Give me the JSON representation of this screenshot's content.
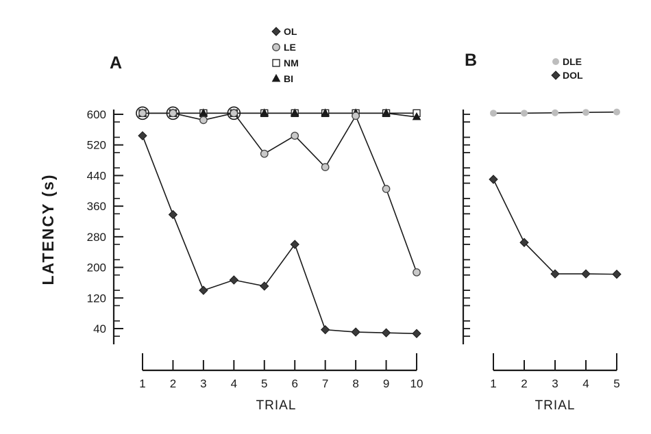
{
  "chart_data": [
    {
      "panel": "A",
      "type": "line",
      "xlabel": "TRIAL",
      "ylabel": "LATENCY (s)",
      "x": [
        1,
        2,
        3,
        4,
        5,
        6,
        7,
        8,
        9,
        10
      ],
      "x_ticks": [
        "1",
        "2",
        "3",
        "4",
        "5",
        "6",
        "7",
        "8",
        "9",
        "10"
      ],
      "y_ticks": [
        "600",
        "520",
        "440",
        "360",
        "280",
        "200",
        "120",
        "40"
      ],
      "ylim": [
        20,
        610
      ],
      "legend_placement": "top-center",
      "series": [
        {
          "name": "OL",
          "marker": "diamond",
          "color": "#3a3a3a",
          "values": [
            544,
            338,
            140,
            167,
            151,
            260,
            37,
            31,
            29,
            27
          ]
        },
        {
          "name": "LE",
          "marker": "circle",
          "color": "#c9c9c9",
          "values": [
            603,
            603,
            585,
            603,
            497,
            544,
            462,
            596,
            405,
            187
          ]
        },
        {
          "name": "NM",
          "marker": "square",
          "color": "#ffffff",
          "values": [
            603,
            603,
            603,
            603,
            603,
            603,
            603,
            603,
            603,
            603
          ]
        },
        {
          "name": "BI",
          "marker": "triangle",
          "color": "#1a1a1a",
          "values": [
            603,
            603,
            603,
            603,
            603,
            603,
            603,
            603,
            603,
            593
          ]
        }
      ]
    },
    {
      "panel": "B",
      "type": "line",
      "xlabel": "TRIAL",
      "x": [
        1,
        2,
        3,
        4,
        5
      ],
      "x_ticks": [
        "1",
        "2",
        "3",
        "4",
        "5"
      ],
      "ylim": [
        20,
        610
      ],
      "legend_placement": "top-center",
      "series": [
        {
          "name": "DLE",
          "marker": "circle",
          "color": "#bdbdbd",
          "values": [
            603,
            603,
            604,
            605,
            606
          ]
        },
        {
          "name": "DOL",
          "marker": "diamond",
          "color": "#3a3a3a",
          "values": [
            430,
            265,
            183,
            183,
            182
          ]
        }
      ]
    }
  ]
}
